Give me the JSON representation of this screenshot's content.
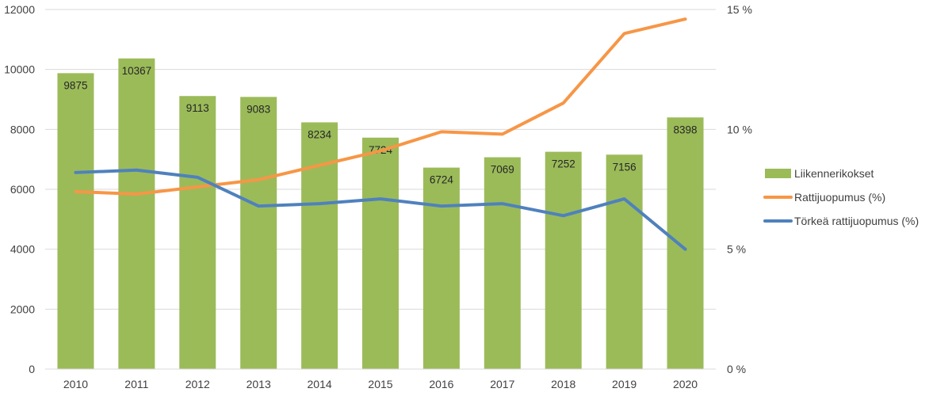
{
  "chart_data": {
    "type": "bar",
    "categories": [
      "2010",
      "2011",
      "2012",
      "2013",
      "2014",
      "2015",
      "2016",
      "2017",
      "2018",
      "2019",
      "2020"
    ],
    "series": [
      {
        "name": "Liikennerikokset",
        "type": "bar",
        "axis": "left",
        "color": "#9BBB59",
        "values": [
          9875,
          10367,
          9113,
          9083,
          8234,
          7724,
          6724,
          7069,
          7252,
          7156,
          8398
        ]
      },
      {
        "name": "Rattijuopumus (%)",
        "type": "line",
        "axis": "right",
        "color": "#F79646",
        "values": [
          7.4,
          7.3,
          7.6,
          7.9,
          8.5,
          9.1,
          9.9,
          9.8,
          11.1,
          14.0,
          14.6
        ]
      },
      {
        "name": "Törkeä rattijuopumus (%)",
        "type": "line",
        "axis": "right",
        "color": "#4F81BD",
        "values": [
          8.2,
          8.3,
          8.0,
          6.8,
          6.9,
          7.1,
          6.8,
          6.9,
          6.4,
          7.1,
          5.0
        ]
      }
    ],
    "y_left": {
      "min": 0,
      "max": 12000,
      "ticks": [
        "0",
        "2000",
        "4000",
        "6000",
        "8000",
        "10000",
        "12000"
      ]
    },
    "y_right": {
      "min": 0,
      "max": 15,
      "ticks": [
        "0 %",
        "5 %",
        "10 %",
        "15 %"
      ]
    },
    "grid": true,
    "legend_position": "right",
    "gridline_color": "#D9D9D9"
  }
}
